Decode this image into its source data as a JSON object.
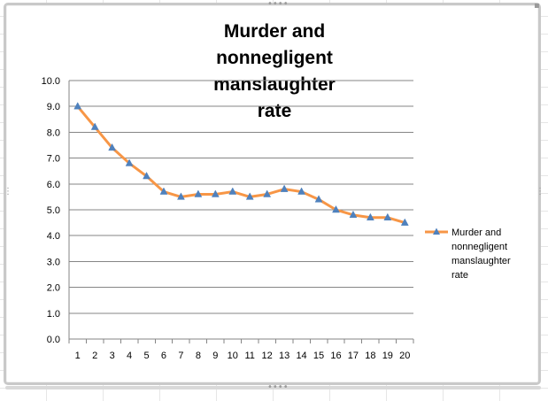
{
  "chart_data": {
    "type": "line",
    "title_lines": [
      "Murder and",
      "nonnegligent",
      "manslaughter",
      "rate"
    ],
    "categories": [
      "1",
      "2",
      "3",
      "4",
      "5",
      "6",
      "7",
      "8",
      "9",
      "10",
      "11",
      "12",
      "13",
      "14",
      "15",
      "16",
      "17",
      "18",
      "19",
      "20"
    ],
    "series": [
      {
        "name_lines": [
          "Murder and",
          "nonnegligent",
          "manslaughter",
          "rate"
        ],
        "values": [
          9.0,
          8.2,
          7.4,
          6.8,
          6.3,
          5.7,
          5.5,
          5.6,
          5.6,
          5.7,
          5.5,
          5.6,
          5.8,
          5.7,
          5.4,
          5.0,
          4.8,
          4.7,
          4.7,
          4.5
        ],
        "color": "#f79646",
        "marker_color": "#4f81bd",
        "marker": "triangle"
      }
    ],
    "ylim": [
      0,
      10
    ],
    "y_ticks": [
      "0.0",
      "1.0",
      "2.0",
      "3.0",
      "4.0",
      "5.0",
      "6.0",
      "7.0",
      "8.0",
      "9.0",
      "10.0"
    ],
    "grid": "horizontal",
    "legend_position": "right"
  }
}
